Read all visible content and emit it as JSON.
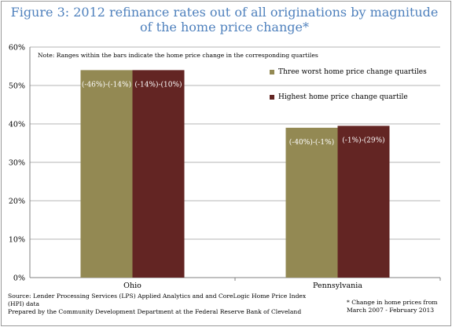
{
  "title_line1": "Figure 3: 2012 refinance rates out of all originations by magnitude",
  "title_line2": "of the home price change*",
  "note": "Note: Ranges within the bars indicate the home price change in the corresponding quartiles",
  "source_line1": "Source: Lender Processing Services (LPS) Applied Analytics and and CoreLogic Home Price Index",
  "source_line2": "(HPI) data",
  "source_line3": "Prepared by the Community Development Department at the Federal Reserve Bank of Cleveland",
  "footnote_line1": "* Change in home prices from",
  "footnote_line2": "March 2007 - February 2013",
  "colors": {
    "series0": "#938953",
    "series1": "#632523",
    "title": "#4f81bd",
    "grid": "#b5b5b5",
    "bar_label": "#ffffff"
  },
  "chart_data": {
    "type": "bar",
    "categories": [
      "Ohio",
      "Pennsylvania"
    ],
    "series": [
      {
        "name": "Three worst home price change quartiles",
        "values": [
          54,
          39
        ],
        "labels": [
          "(-46%)-(-14%)",
          "(-40%)-(-1%)"
        ]
      },
      {
        "name": "Highest home price change quartile",
        "values": [
          54,
          39.5
        ],
        "labels": [
          "(-14%)-(10%)",
          "(-1%)-(29%)"
        ]
      }
    ],
    "ylim": [
      0,
      60
    ],
    "yticks": [
      "0%",
      "10%",
      "20%",
      "30%",
      "40%",
      "50%",
      "60%"
    ],
    "grid": true,
    "legend_position": "right"
  }
}
